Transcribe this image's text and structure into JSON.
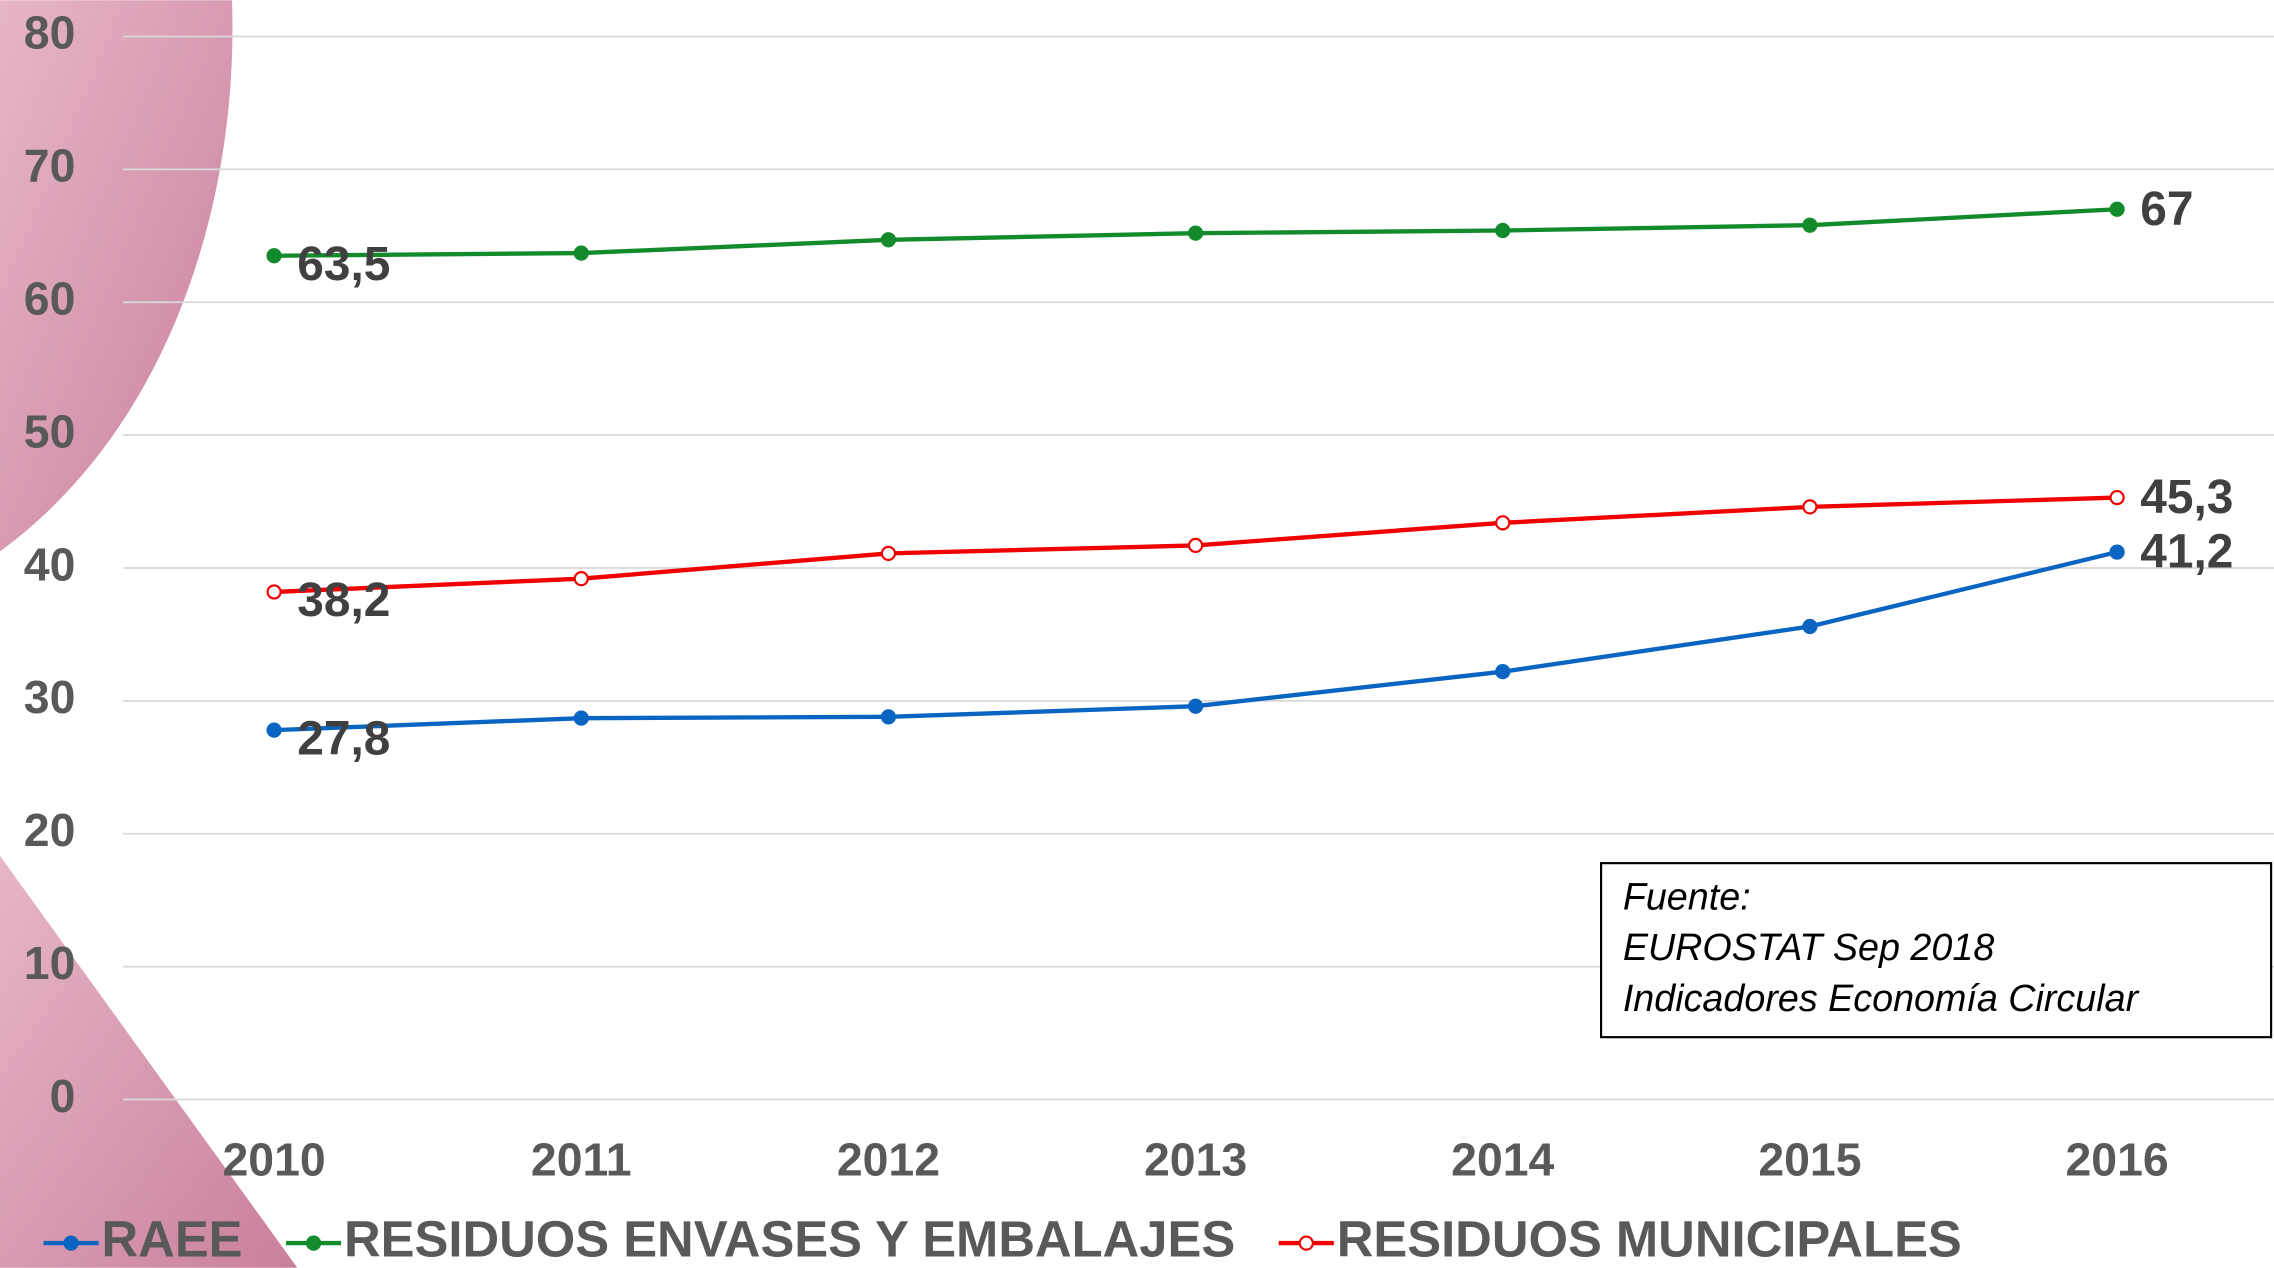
{
  "chart_data": {
    "type": "line",
    "categories": [
      "2010",
      "2011",
      "2012",
      "2013",
      "2014",
      "2015",
      "2016"
    ],
    "series": [
      {
        "name": "RAEE",
        "color": "#0a64c2",
        "marker": "filled",
        "values": [
          27.8,
          28.7,
          28.8,
          29.6,
          32.2,
          35.6,
          41.2
        ],
        "value_labels": [
          "27,8",
          null,
          null,
          null,
          null,
          null,
          "41,2"
        ]
      },
      {
        "name": "RESIDUOS ENVASES Y EMBALAJES",
        "color": "#138a2c",
        "marker": "filled",
        "values": [
          63.5,
          63.7,
          64.7,
          65.2,
          65.4,
          65.8,
          67
        ],
        "value_labels": [
          "63,5",
          null,
          null,
          null,
          null,
          null,
          "67"
        ]
      },
      {
        "name": "RESIDUOS MUNICIPALES",
        "color": "#f00000",
        "marker": "hollow",
        "values": [
          38.2,
          39.2,
          41.1,
          41.7,
          43.4,
          44.6,
          45.3
        ],
        "value_labels": [
          "38,2",
          null,
          null,
          null,
          null,
          null,
          "45,3"
        ]
      }
    ],
    "ylim": [
      0,
      80
    ],
    "yticks": [
      0,
      10,
      20,
      30,
      40,
      50,
      60,
      70,
      80
    ],
    "grid": true,
    "legend": "bottom",
    "annotations": [
      "Fuente:",
      "EUROSTAT Sep 2018",
      "Indicadores Economía Circular"
    ]
  }
}
